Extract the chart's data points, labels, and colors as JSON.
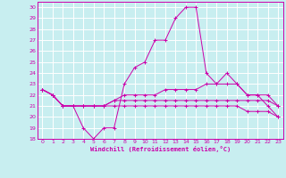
{
  "xlabel": "Windchill (Refroidissement éolien,°C)",
  "bg_color": "#c8eef0",
  "grid_color": "#ffffff",
  "line_color": "#cc00aa",
  "xlim": [
    -0.5,
    23.5
  ],
  "ylim": [
    18,
    30.5
  ],
  "xticks": [
    0,
    1,
    2,
    3,
    4,
    5,
    6,
    7,
    8,
    9,
    10,
    11,
    12,
    13,
    14,
    15,
    16,
    17,
    18,
    19,
    20,
    21,
    22,
    23
  ],
  "yticks": [
    18,
    19,
    20,
    21,
    22,
    23,
    24,
    25,
    26,
    27,
    28,
    29,
    30
  ],
  "lines": [
    {
      "x": [
        0,
        1,
        2,
        3,
        4,
        5,
        6,
        7,
        8,
        9,
        10,
        11,
        12,
        13,
        14,
        15,
        16,
        17,
        18,
        19,
        20,
        21,
        22,
        23
      ],
      "y": [
        22.5,
        22,
        21,
        21,
        19,
        18,
        19,
        19,
        23,
        24.5,
        25,
        27,
        27,
        29,
        30,
        30,
        24,
        23,
        24,
        23,
        22,
        22,
        21,
        20
      ]
    },
    {
      "x": [
        0,
        1,
        2,
        3,
        4,
        5,
        6,
        7,
        8,
        9,
        10,
        11,
        12,
        13,
        14,
        15,
        16,
        17,
        18,
        19,
        20,
        21,
        22,
        23
      ],
      "y": [
        22.5,
        22,
        21,
        21,
        21,
        21,
        21,
        21.5,
        22,
        22,
        22,
        22,
        22.5,
        22.5,
        22.5,
        22.5,
        23,
        23,
        23,
        23,
        22,
        22,
        22,
        21
      ]
    },
    {
      "x": [
        0,
        1,
        2,
        3,
        4,
        5,
        6,
        7,
        8,
        9,
        10,
        11,
        12,
        13,
        14,
        15,
        16,
        17,
        18,
        19,
        20,
        21,
        22,
        23
      ],
      "y": [
        22.5,
        22,
        21,
        21,
        21,
        21,
        21,
        21,
        21,
        21,
        21,
        21,
        21,
        21,
        21,
        21,
        21,
        21,
        21,
        21,
        20.5,
        20.5,
        20.5,
        20
      ]
    },
    {
      "x": [
        0,
        1,
        2,
        3,
        4,
        5,
        6,
        7,
        8,
        9,
        10,
        11,
        12,
        13,
        14,
        15,
        16,
        17,
        18,
        19,
        20,
        21,
        22,
        23
      ],
      "y": [
        22.5,
        22,
        21,
        21,
        21,
        21,
        21,
        21.5,
        21.5,
        21.5,
        21.5,
        21.5,
        21.5,
        21.5,
        21.5,
        21.5,
        21.5,
        21.5,
        21.5,
        21.5,
        21.5,
        21.5,
        21.5,
        21
      ]
    }
  ]
}
